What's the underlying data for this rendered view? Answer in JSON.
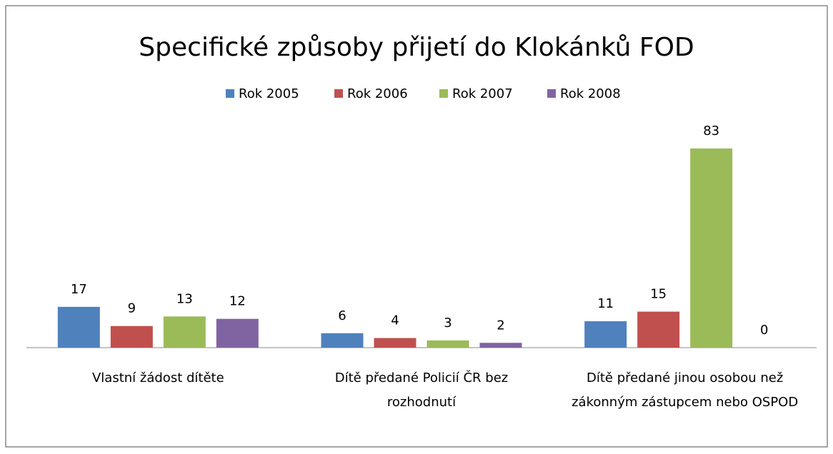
{
  "chart_data": {
    "type": "bar",
    "title": "Specifické způsoby přijetí do Klokánků FOD",
    "categories": [
      "Vlastní žádost dítěte",
      "Dítě předané Policií ČR bez rozhodnutí",
      "Dítě předané jinou osobou než zákonným zástupcem nebo OSPOD"
    ],
    "series": [
      {
        "name": "Rok 2005",
        "color": "#4f81bd",
        "values": [
          17,
          6,
          11
        ]
      },
      {
        "name": "Rok 2006",
        "color": "#c0504d",
        "values": [
          9,
          4,
          15
        ]
      },
      {
        "name": "Rok 2007",
        "color": "#9bbb59",
        "values": [
          13,
          3,
          83
        ]
      },
      {
        "name": "Rok 2008",
        "color": "#8064a2",
        "values": [
          12,
          2,
          0
        ]
      }
    ],
    "legend": "top"
  }
}
